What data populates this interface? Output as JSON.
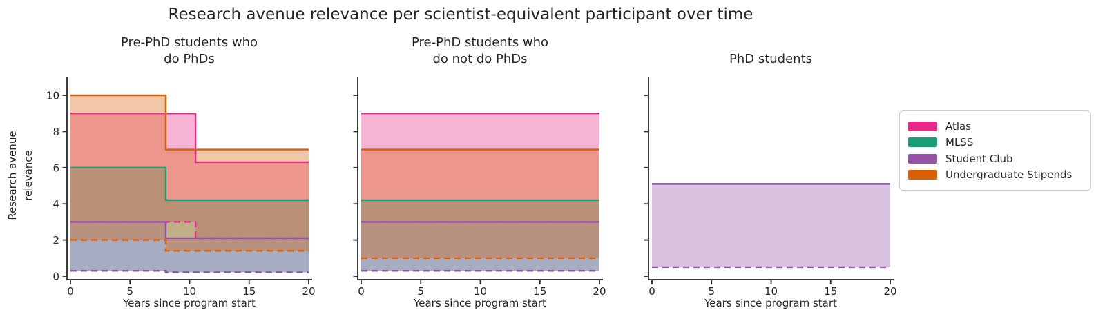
{
  "title": "Research avenue relevance per scientist-equivalent participant over time",
  "y_axis_label": "Research avenue\nrelevance",
  "x_axis_label": "Years since program start",
  "legend": {
    "items": [
      {
        "label": "Atlas",
        "color": "#E7298A"
      },
      {
        "label": "MLSS",
        "color": "#1B9E77"
      },
      {
        "label": "Student Club",
        "color": "#9553A8"
      },
      {
        "label": "Undergraduate Stipends",
        "color": "#D95F02"
      }
    ]
  },
  "chart_data": {
    "type": "area",
    "subtype": "step-band-fill-between",
    "fill_alpha": 0.35,
    "line_style": {
      "upper_bound": "solid",
      "lower_bound": "dashed"
    },
    "x_range": [
      0,
      20
    ],
    "y_range": [
      0,
      11
    ],
    "grid": false,
    "legend_position": "right",
    "panels": [
      {
        "title": "Pre-PhD students who\ndo PhDs",
        "x_label": "Years since program start",
        "x_ticks": [
          0,
          5,
          10,
          15,
          20
        ],
        "y_ticks": [
          0,
          2,
          4,
          6,
          8,
          10
        ],
        "show_y_tick_labels": true,
        "series": [
          {
            "name": "Atlas",
            "color": "#E7298A",
            "upper_steps": [
              [
                0,
                9
              ],
              [
                10.5,
                6.3
              ]
            ],
            "lower_steps": [
              [
                0,
                3
              ],
              [
                10.5,
                2.1
              ]
            ]
          },
          {
            "name": "MLSS",
            "color": "#1B9E77",
            "upper_steps": [
              [
                0,
                6
              ],
              [
                8,
                4.2
              ]
            ],
            "lower_steps": [
              [
                0,
                0.3
              ],
              [
                8,
                0.21
              ]
            ]
          },
          {
            "name": "Student Club",
            "color": "#9553A8",
            "upper_steps": [
              [
                0,
                3
              ],
              [
                8,
                2.1
              ]
            ],
            "lower_steps": [
              [
                0,
                0.3
              ],
              [
                8,
                0.21
              ]
            ]
          },
          {
            "name": "Undergraduate Stipends",
            "color": "#D95F02",
            "upper_steps": [
              [
                0,
                10
              ],
              [
                8,
                7
              ]
            ],
            "lower_steps": [
              [
                0,
                2
              ],
              [
                8,
                1.4
              ]
            ]
          }
        ]
      },
      {
        "title": "Pre-PhD students who\ndo not do PhDs",
        "x_label": "Years since program start",
        "x_ticks": [
          0,
          5,
          10,
          15,
          20
        ],
        "y_ticks": [
          0,
          2,
          4,
          6,
          8,
          10
        ],
        "show_y_tick_labels": false,
        "series": [
          {
            "name": "Atlas",
            "color": "#E7298A",
            "upper_steps": [
              [
                0,
                9
              ]
            ],
            "lower_steps": [
              [
                0,
                3
              ]
            ]
          },
          {
            "name": "MLSS",
            "color": "#1B9E77",
            "upper_steps": [
              [
                0,
                4.2
              ]
            ],
            "lower_steps": [
              [
                0,
                0.3
              ]
            ]
          },
          {
            "name": "Student Club",
            "color": "#9553A8",
            "upper_steps": [
              [
                0,
                3
              ]
            ],
            "lower_steps": [
              [
                0,
                0.3
              ]
            ]
          },
          {
            "name": "Undergraduate Stipends",
            "color": "#D95F02",
            "upper_steps": [
              [
                0,
                7
              ]
            ],
            "lower_steps": [
              [
                0,
                1
              ]
            ]
          }
        ]
      },
      {
        "title": "PhD students",
        "x_label": "Years since program start",
        "x_ticks": [
          0,
          5,
          10,
          15,
          20
        ],
        "y_ticks": [
          0,
          2,
          4,
          6,
          8,
          10
        ],
        "show_y_tick_labels": false,
        "series": [
          {
            "name": "Student Club",
            "color": "#9553A8",
            "upper_steps": [
              [
                0,
                5.1
              ]
            ],
            "lower_steps": [
              [
                0,
                0.5
              ]
            ]
          }
        ]
      }
    ]
  }
}
